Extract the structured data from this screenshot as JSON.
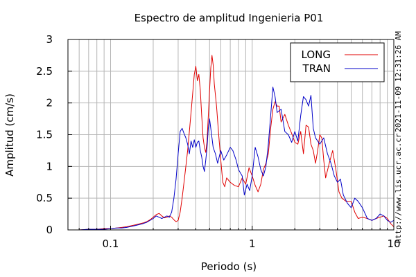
{
  "chart_data": {
    "type": "line",
    "title": "Espectro de amplitud Ingenieria P01",
    "xlabel": "Periodo (s)",
    "ylabel": "Amplitud (cm/s)",
    "x_scale": "log",
    "xlim": [
      0.05,
      10
    ],
    "ylim": [
      0,
      3
    ],
    "x_ticks": [
      {
        "value": 0.1,
        "label": "0.1"
      },
      {
        "value": 1,
        "label": "1"
      },
      {
        "value": 10,
        "label": "10"
      }
    ],
    "y_ticks": [
      {
        "value": 0,
        "label": "0"
      },
      {
        "value": 0.5,
        "label": "0.5"
      },
      {
        "value": 1,
        "label": "1"
      },
      {
        "value": 1.5,
        "label": "1.5"
      },
      {
        "value": 2,
        "label": "2"
      },
      {
        "value": 2.5,
        "label": "2.5"
      },
      {
        "value": 3,
        "label": "3"
      }
    ],
    "grid": true,
    "legend_position": "top-right",
    "series": [
      {
        "name": "LONG",
        "color": "#e00000",
        "points": [
          [
            0.05,
            0.0
          ],
          [
            0.06,
            0.0
          ],
          [
            0.07,
            0.01
          ],
          [
            0.08,
            0.01
          ],
          [
            0.09,
            0.02
          ],
          [
            0.1,
            0.02
          ],
          [
            0.11,
            0.03
          ],
          [
            0.12,
            0.04
          ],
          [
            0.13,
            0.05
          ],
          [
            0.15,
            0.08
          ],
          [
            0.17,
            0.11
          ],
          [
            0.18,
            0.13
          ],
          [
            0.19,
            0.16
          ],
          [
            0.2,
            0.2
          ],
          [
            0.21,
            0.24
          ],
          [
            0.22,
            0.26
          ],
          [
            0.23,
            0.22
          ],
          [
            0.24,
            0.19
          ],
          [
            0.25,
            0.2
          ],
          [
            0.26,
            0.22
          ],
          [
            0.27,
            0.2
          ],
          [
            0.28,
            0.16
          ],
          [
            0.29,
            0.13
          ],
          [
            0.3,
            0.15
          ],
          [
            0.31,
            0.28
          ],
          [
            0.32,
            0.5
          ],
          [
            0.33,
            0.75
          ],
          [
            0.34,
            1.0
          ],
          [
            0.35,
            1.25
          ],
          [
            0.36,
            1.55
          ],
          [
            0.37,
            1.85
          ],
          [
            0.38,
            2.15
          ],
          [
            0.39,
            2.45
          ],
          [
            0.4,
            2.58
          ],
          [
            0.41,
            2.35
          ],
          [
            0.42,
            2.45
          ],
          [
            0.43,
            2.2
          ],
          [
            0.44,
            1.8
          ],
          [
            0.45,
            1.45
          ],
          [
            0.46,
            1.3
          ],
          [
            0.47,
            1.22
          ],
          [
            0.48,
            1.4
          ],
          [
            0.49,
            1.8
          ],
          [
            0.5,
            2.2
          ],
          [
            0.51,
            2.55
          ],
          [
            0.52,
            2.75
          ],
          [
            0.53,
            2.6
          ],
          [
            0.54,
            2.3
          ],
          [
            0.56,
            1.95
          ],
          [
            0.58,
            1.5
          ],
          [
            0.6,
            1.1
          ],
          [
            0.62,
            0.75
          ],
          [
            0.64,
            0.68
          ],
          [
            0.66,
            0.82
          ],
          [
            0.7,
            0.75
          ],
          [
            0.75,
            0.7
          ],
          [
            0.8,
            0.68
          ],
          [
            0.85,
            0.82
          ],
          [
            0.9,
            0.72
          ],
          [
            0.95,
            0.98
          ],
          [
            1.0,
            0.85
          ],
          [
            1.05,
            0.7
          ],
          [
            1.1,
            0.6
          ],
          [
            1.15,
            0.72
          ],
          [
            1.2,
            0.95
          ],
          [
            1.25,
            1.05
          ],
          [
            1.3,
            1.2
          ],
          [
            1.35,
            1.6
          ],
          [
            1.4,
            1.9
          ],
          [
            1.45,
            2.02
          ],
          [
            1.5,
            1.95
          ],
          [
            1.55,
            1.95
          ],
          [
            1.6,
            1.7
          ],
          [
            1.7,
            1.82
          ],
          [
            1.8,
            1.65
          ],
          [
            1.9,
            1.52
          ],
          [
            2.0,
            1.38
          ],
          [
            2.1,
            1.35
          ],
          [
            2.2,
            1.55
          ],
          [
            2.3,
            1.2
          ],
          [
            2.4,
            1.65
          ],
          [
            2.5,
            1.62
          ],
          [
            2.6,
            1.35
          ],
          [
            2.7,
            1.25
          ],
          [
            2.8,
            1.05
          ],
          [
            2.9,
            1.25
          ],
          [
            3.0,
            1.5
          ],
          [
            3.1,
            1.45
          ],
          [
            3.2,
            1.1
          ],
          [
            3.3,
            0.82
          ],
          [
            3.5,
            1.05
          ],
          [
            3.7,
            1.25
          ],
          [
            3.9,
            0.95
          ],
          [
            4.1,
            0.6
          ],
          [
            4.3,
            0.5
          ],
          [
            4.6,
            0.45
          ],
          [
            5.0,
            0.45
          ],
          [
            5.3,
            0.28
          ],
          [
            5.6,
            0.18
          ],
          [
            6.0,
            0.2
          ],
          [
            6.5,
            0.18
          ],
          [
            7.0,
            0.15
          ],
          [
            7.5,
            0.18
          ],
          [
            8.0,
            0.2
          ],
          [
            8.5,
            0.22
          ],
          [
            9.0,
            0.18
          ],
          [
            9.5,
            0.1
          ],
          [
            10.0,
            0.05
          ]
        ]
      },
      {
        "name": "TRAN",
        "color": "#0000c8",
        "points": [
          [
            0.05,
            0.0
          ],
          [
            0.06,
            0.0
          ],
          [
            0.07,
            0.01
          ],
          [
            0.08,
            0.01
          ],
          [
            0.09,
            0.01
          ],
          [
            0.1,
            0.02
          ],
          [
            0.11,
            0.03
          ],
          [
            0.12,
            0.03
          ],
          [
            0.13,
            0.04
          ],
          [
            0.15,
            0.07
          ],
          [
            0.17,
            0.1
          ],
          [
            0.18,
            0.12
          ],
          [
            0.19,
            0.15
          ],
          [
            0.2,
            0.18
          ],
          [
            0.21,
            0.22
          ],
          [
            0.22,
            0.2
          ],
          [
            0.23,
            0.18
          ],
          [
            0.24,
            0.2
          ],
          [
            0.25,
            0.22
          ],
          [
            0.26,
            0.2
          ],
          [
            0.27,
            0.28
          ],
          [
            0.28,
            0.5
          ],
          [
            0.29,
            0.8
          ],
          [
            0.3,
            1.2
          ],
          [
            0.31,
            1.55
          ],
          [
            0.32,
            1.6
          ],
          [
            0.33,
            1.52
          ],
          [
            0.34,
            1.45
          ],
          [
            0.35,
            1.35
          ],
          [
            0.36,
            1.2
          ],
          [
            0.37,
            1.4
          ],
          [
            0.38,
            1.3
          ],
          [
            0.39,
            1.42
          ],
          [
            0.4,
            1.3
          ],
          [
            0.41,
            1.38
          ],
          [
            0.42,
            1.4
          ],
          [
            0.43,
            1.25
          ],
          [
            0.44,
            1.15
          ],
          [
            0.45,
            1.0
          ],
          [
            0.46,
            0.92
          ],
          [
            0.47,
            1.1
          ],
          [
            0.48,
            1.3
          ],
          [
            0.49,
            1.6
          ],
          [
            0.5,
            1.75
          ],
          [
            0.51,
            1.6
          ],
          [
            0.52,
            1.45
          ],
          [
            0.53,
            1.3
          ],
          [
            0.55,
            1.2
          ],
          [
            0.57,
            1.05
          ],
          [
            0.6,
            1.25
          ],
          [
            0.63,
            1.1
          ],
          [
            0.66,
            1.18
          ],
          [
            0.7,
            1.3
          ],
          [
            0.73,
            1.25
          ],
          [
            0.77,
            1.1
          ],
          [
            0.8,
            0.95
          ],
          [
            0.85,
            0.85
          ],
          [
            0.88,
            0.55
          ],
          [
            0.92,
            0.72
          ],
          [
            0.96,
            0.62
          ],
          [
            1.0,
            0.85
          ],
          [
            1.05,
            1.3
          ],
          [
            1.1,
            1.15
          ],
          [
            1.15,
            0.95
          ],
          [
            1.2,
            0.85
          ],
          [
            1.25,
            1.0
          ],
          [
            1.3,
            1.35
          ],
          [
            1.35,
            1.8
          ],
          [
            1.4,
            2.25
          ],
          [
            1.45,
            2.1
          ],
          [
            1.5,
            1.85
          ],
          [
            1.6,
            1.9
          ],
          [
            1.7,
            1.55
          ],
          [
            1.8,
            1.5
          ],
          [
            1.9,
            1.38
          ],
          [
            2.0,
            1.55
          ],
          [
            2.1,
            1.4
          ],
          [
            2.2,
            1.8
          ],
          [
            2.3,
            2.1
          ],
          [
            2.4,
            2.05
          ],
          [
            2.5,
            1.95
          ],
          [
            2.6,
            2.12
          ],
          [
            2.7,
            1.6
          ],
          [
            2.8,
            1.45
          ],
          [
            2.9,
            1.4
          ],
          [
            3.0,
            1.35
          ],
          [
            3.2,
            1.45
          ],
          [
            3.4,
            1.2
          ],
          [
            3.6,
            1.05
          ],
          [
            3.8,
            0.85
          ],
          [
            4.0,
            0.75
          ],
          [
            4.2,
            0.8
          ],
          [
            4.4,
            0.55
          ],
          [
            4.7,
            0.42
          ],
          [
            5.0,
            0.35
          ],
          [
            5.3,
            0.5
          ],
          [
            5.6,
            0.45
          ],
          [
            6.0,
            0.35
          ],
          [
            6.5,
            0.18
          ],
          [
            7.0,
            0.15
          ],
          [
            7.5,
            0.18
          ],
          [
            8.0,
            0.25
          ],
          [
            8.5,
            0.22
          ],
          [
            9.0,
            0.15
          ],
          [
            9.5,
            0.12
          ],
          [
            10.0,
            0.15
          ]
        ]
      }
    ]
  },
  "side_labels": {
    "timestamp": "2021-11-09 12:31:26 AM",
    "url": "http://www.lis.ucr.ac.cr"
  }
}
